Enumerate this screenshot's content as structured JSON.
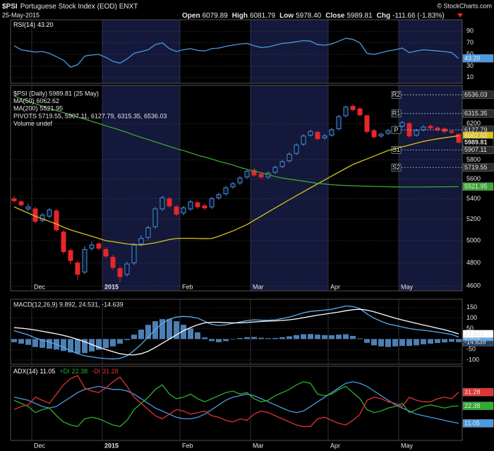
{
  "header": {
    "symbol": "$PSI",
    "name": "Portuguese Stock Index (EOD) ENXT",
    "credit": "© StockCharts.com",
    "date": "25-May-2015",
    "quote": [
      {
        "label": "Open",
        "value": "6079.89"
      },
      {
        "label": "High",
        "value": "6081.79"
      },
      {
        "label": "Low",
        "value": "5978.40"
      },
      {
        "label": "Close",
        "value": "5989.81"
      },
      {
        "label": "Chg",
        "value": "-111.66 (-1.83%)"
      }
    ]
  },
  "chart_data": [
    {
      "type": "line",
      "ylim": [
        0,
        110
      ],
      "yticks": [
        10,
        30,
        50,
        70,
        90
      ],
      "grid": true,
      "series": [
        {
          "name": "RSI(14)",
          "color": "#4a9ae0",
          "last_value_label": "43.20",
          "values": [
            65,
            58,
            56,
            54,
            55,
            52,
            46,
            40,
            28,
            32,
            47,
            49,
            50,
            45,
            38,
            35,
            42,
            52,
            55,
            58,
            67,
            70,
            60,
            55,
            58,
            60,
            57,
            56,
            60,
            61,
            64,
            66,
            68,
            69,
            65,
            62,
            63,
            66,
            69,
            70,
            72,
            74,
            73,
            67,
            66,
            68,
            73,
            78,
            76,
            70,
            52,
            50,
            53,
            56,
            58,
            61,
            53,
            56,
            58,
            57,
            56,
            55,
            53,
            43.2
          ]
        }
      ]
    },
    {
      "type": "candlestick",
      "legend": "$PSI (Daily) 5989.81 (25 May)",
      "extra_legend": "Volume undef",
      "log_scale": true,
      "ylim": [
        4560,
        6650
      ],
      "yticks": [
        4600,
        4800,
        5000,
        5200,
        5400,
        5600,
        5800,
        6200
      ],
      "grid": true,
      "up_color": "#4a90e2",
      "down_color": "#e8262a",
      "categories": [
        null,
        null,
        null,
        "Dec",
        null,
        null,
        null,
        null,
        null,
        null,
        null,
        null,
        null,
        "2015",
        null,
        null,
        null,
        null,
        null,
        null,
        null,
        null,
        null,
        null,
        "Feb",
        null,
        null,
        null,
        null,
        null,
        null,
        null,
        null,
        null,
        "Mar",
        null,
        null,
        null,
        null,
        null,
        null,
        null,
        null,
        null,
        null,
        "Apr",
        null,
        null,
        null,
        null,
        null,
        null,
        null,
        null,
        null,
        "May",
        null,
        null,
        null,
        null,
        null,
        null,
        null,
        null
      ],
      "open": [
        5400,
        5370,
        5300,
        5300,
        5190,
        5230,
        5280,
        5080,
        4910,
        4800,
        4720,
        4930,
        4970,
        4920,
        4850,
        4750,
        4700,
        4800,
        4970,
        5030,
        5130,
        5300,
        5400,
        5320,
        5260,
        5300,
        5360,
        5330,
        5320,
        5410,
        5450,
        5520,
        5560,
        5620,
        5690,
        5650,
        5620,
        5670,
        5730,
        5790,
        5870,
        5970,
        6070,
        6100,
        6040,
        6070,
        6140,
        6290,
        6400,
        6370,
        6290,
        6120,
        6060,
        6090,
        6130,
        6170,
        6200,
        6070,
        6130,
        6170,
        6150,
        6140,
        6110,
        6079.89
      ],
      "high": [
        5430,
        5390,
        5350,
        5320,
        5260,
        5310,
        5300,
        5100,
        4930,
        4820,
        4950,
        4990,
        4990,
        4940,
        4870,
        4770,
        4810,
        4980,
        5050,
        5140,
        5320,
        5430,
        5420,
        5340,
        5330,
        5390,
        5380,
        5350,
        5420,
        5460,
        5530,
        5570,
        5630,
        5700,
        5710,
        5670,
        5680,
        5740,
        5800,
        5880,
        5980,
        6080,
        6130,
        6120,
        6080,
        6150,
        6300,
        6410,
        6420,
        6390,
        6300,
        6140,
        6100,
        6140,
        6180,
        6230,
        6220,
        6140,
        6180,
        6190,
        6170,
        6160,
        6130,
        6081.79
      ],
      "low": [
        5360,
        5320,
        5280,
        5160,
        5170,
        5210,
        5080,
        4880,
        4790,
        4650,
        4700,
        4910,
        4910,
        4840,
        4740,
        4630,
        4680,
        4780,
        4950,
        5010,
        5110,
        5280,
        5310,
        5230,
        5240,
        5280,
        5300,
        5290,
        5300,
        5390,
        5430,
        5500,
        5540,
        5600,
        5620,
        5600,
        5600,
        5650,
        5710,
        5770,
        5850,
        5950,
        6050,
        6010,
        6020,
        6050,
        6120,
        6270,
        6340,
        6280,
        6090,
        6030,
        6040,
        6070,
        6110,
        6150,
        6040,
        6050,
        6110,
        6130,
        6110,
        6090,
        6080,
        5978.4
      ],
      "close": [
        5380,
        5340,
        5320,
        5180,
        5240,
        5290,
        5100,
        4900,
        4820,
        4700,
        4920,
        4960,
        4930,
        4860,
        4760,
        4680,
        4790,
        4960,
        5020,
        5120,
        5300,
        5410,
        5330,
        5250,
        5310,
        5370,
        5320,
        5310,
        5400,
        5440,
        5510,
        5550,
        5610,
        5680,
        5640,
        5620,
        5660,
        5720,
        5780,
        5860,
        5960,
        6060,
        6110,
        6030,
        6060,
        6130,
        6280,
        6390,
        6360,
        6300,
        6110,
        6050,
        6080,
        6120,
        6160,
        6210,
        6060,
        6120,
        6160,
        6150,
        6130,
        6110,
        6101.47,
        5989.81
      ],
      "series": [
        {
          "name": "MA(50)",
          "color": "#d9c21c",
          "values": [
            5320,
            5290,
            5260,
            5230,
            5205,
            5180,
            5155,
            5125,
            5100,
            5080,
            5060,
            5040,
            5020,
            5000,
            4990,
            4980,
            4970,
            4965,
            4960,
            4970,
            4980,
            4995,
            5010,
            5020,
            5022,
            5022,
            5020,
            5018,
            5020,
            5040,
            5065,
            5090,
            5120,
            5150,
            5190,
            5230,
            5270,
            5310,
            5350,
            5390,
            5430,
            5470,
            5510,
            5550,
            5590,
            5630,
            5670,
            5710,
            5750,
            5780,
            5810,
            5840,
            5870,
            5900,
            5920,
            5940,
            5960,
            5980,
            6000,
            6015,
            6028,
            6040,
            6051,
            6062.62
          ]
        },
        {
          "name": "MA(200)",
          "color": "#3aa52e",
          "values": [
            6520,
            6490,
            6460,
            6430,
            6400,
            6375,
            6350,
            6325,
            6300,
            6275,
            6250,
            6225,
            6200,
            6175,
            6150,
            6125,
            6100,
            6070,
            6045,
            6020,
            5995,
            5970,
            5945,
            5920,
            5900,
            5875,
            5850,
            5830,
            5810,
            5785,
            5765,
            5745,
            5720,
            5700,
            5680,
            5665,
            5645,
            5625,
            5610,
            5598,
            5587,
            5577,
            5566,
            5555,
            5548,
            5542,
            5537,
            5533,
            5530,
            5528,
            5526,
            5524,
            5522,
            5520,
            5519,
            5518,
            5518,
            5518,
            5518,
            5519,
            5520,
            5520,
            5521,
            5521.95
          ]
        }
      ],
      "pivots": {
        "legend": "PIVOTS 5719.55, 5907.11, 6127.79, 6315.35, 6536.03",
        "color": "#9fc7dc",
        "levels": [
          {
            "name": "R2",
            "value": 6536.03
          },
          {
            "name": "R1",
            "value": 6315.35
          },
          {
            "name": "P",
            "value": 6127.79
          },
          {
            "name": "S1",
            "value": 5907.11
          },
          {
            "name": "S2",
            "value": 5719.55
          }
        ]
      }
    },
    {
      "type": "line",
      "legend": "MACD(12,26,9) 9.892, 24.531, -14.639",
      "ylim": [
        -120,
        190
      ],
      "yticks": [
        -100,
        -50,
        0,
        50,
        100,
        150
      ],
      "grid": true,
      "series": [
        {
          "color": "#4d7fb3",
          "style": "bar",
          "values": [
            -15,
            -22,
            -28,
            -38,
            -42,
            -46,
            -50,
            -57,
            -64,
            -69,
            -67,
            -59,
            -51,
            -43,
            -35,
            -22,
            -5,
            21,
            45,
            68,
            85,
            95,
            95,
            85,
            68,
            51,
            32,
            8,
            -10,
            -15,
            -10,
            -2,
            5,
            9,
            10,
            6,
            4,
            5,
            9,
            13,
            19,
            23,
            24,
            21,
            19,
            18,
            21,
            23,
            15,
            3,
            -18,
            -30,
            -35,
            -38,
            -35,
            -33,
            -33,
            -30,
            -25,
            -22,
            -19,
            -16,
            -13,
            -14.639
          ]
        },
        {
          "color": "#5aaef0",
          "values": [
            40,
            30,
            20,
            5,
            -5,
            -15,
            -25,
            -40,
            -55,
            -70,
            -80,
            -85,
            -90,
            -93,
            -95,
            -92,
            -80,
            -55,
            -25,
            10,
            45,
            75,
            95,
            105,
            108,
            106,
            100,
            85,
            70,
            65,
            68,
            75,
            82,
            88,
            92,
            90,
            90,
            92,
            98,
            105,
            115,
            125,
            132,
            135,
            138,
            142,
            150,
            158,
            155,
            145,
            120,
            100,
            85,
            72,
            65,
            58,
            50,
            45,
            42,
            38,
            33,
            28,
            22,
            9.892
          ]
        },
        {
          "color": "#ffffff",
          "values": [
            55,
            52,
            48,
            43,
            37,
            31,
            25,
            17,
            9,
            -1,
            -13,
            -26,
            -39,
            -50,
            -60,
            -70,
            -75,
            -76,
            -70,
            -58,
            -40,
            -20,
            0,
            20,
            40,
            55,
            68,
            77,
            80,
            80,
            78,
            77,
            77,
            79,
            82,
            84,
            86,
            87,
            89,
            92,
            96,
            102,
            108,
            114,
            119,
            124,
            129,
            135,
            140,
            142,
            138,
            130,
            120,
            110,
            100,
            91,
            83,
            75,
            67,
            60,
            52,
            44,
            35,
            24.531
          ]
        }
      ]
    },
    {
      "type": "line",
      "ylim": [
        0,
        48
      ],
      "categories": [
        null,
        null,
        null,
        "Dec",
        null,
        null,
        null,
        null,
        null,
        null,
        null,
        null,
        null,
        "2015",
        null,
        null,
        null,
        null,
        null,
        null,
        null,
        null,
        null,
        null,
        "Feb",
        null,
        null,
        null,
        null,
        null,
        null,
        null,
        null,
        null,
        "Mar",
        null,
        null,
        null,
        null,
        null,
        null,
        null,
        null,
        null,
        null,
        "Apr",
        null,
        null,
        null,
        null,
        null,
        null,
        null,
        null,
        null,
        "May",
        null,
        null,
        null,
        null,
        null,
        null,
        null,
        null
      ],
      "series": [
        {
          "name": "ADX(14)",
          "color": "#4a9ae0",
          "values": [
            28,
            27,
            26,
            24,
            22,
            21,
            22,
            25,
            28,
            31,
            33,
            34,
            35,
            34,
            33,
            33,
            32,
            30,
            27,
            24,
            21,
            19,
            17,
            15,
            14,
            14,
            15,
            17,
            20,
            23,
            26,
            28,
            29,
            30,
            29,
            27,
            25,
            23,
            21,
            19,
            18,
            19,
            22,
            25,
            28,
            31,
            34,
            37,
            38,
            37,
            35,
            32,
            29,
            26,
            23,
            21,
            19,
            17,
            16,
            15,
            14,
            13,
            12,
            11.05
          ]
        },
        {
          "name": "+DI",
          "color": "#2fae2f",
          "values": [
            26,
            24,
            22,
            18,
            20,
            21,
            16,
            12,
            10,
            9,
            14,
            15,
            14,
            12,
            10,
            9,
            13,
            20,
            24,
            28,
            33,
            36,
            30,
            27,
            28,
            30,
            27,
            25,
            27,
            29,
            31,
            32,
            30,
            31,
            27,
            25,
            26,
            29,
            31,
            33,
            36,
            38,
            37,
            30,
            29,
            30,
            33,
            35,
            31,
            27,
            20,
            18,
            19,
            21,
            22,
            24,
            18,
            20,
            22,
            23,
            22,
            21,
            22,
            22.38
          ]
        },
        {
          "name": "-DI",
          "color": "#e23232",
          "values": [
            20,
            22,
            23,
            28,
            26,
            24,
            30,
            36,
            40,
            42,
            34,
            32,
            31,
            34,
            38,
            41,
            35,
            28,
            24,
            20,
            16,
            14,
            17,
            20,
            19,
            17,
            18,
            19,
            16,
            15,
            13,
            12,
            14,
            13,
            17,
            19,
            18,
            16,
            14,
            12,
            10,
            9,
            9,
            14,
            15,
            13,
            11,
            10,
            13,
            17,
            26,
            28,
            27,
            25,
            24,
            22,
            28,
            26,
            25,
            25,
            27,
            28,
            27,
            31.28
          ]
        }
      ]
    }
  ]
}
